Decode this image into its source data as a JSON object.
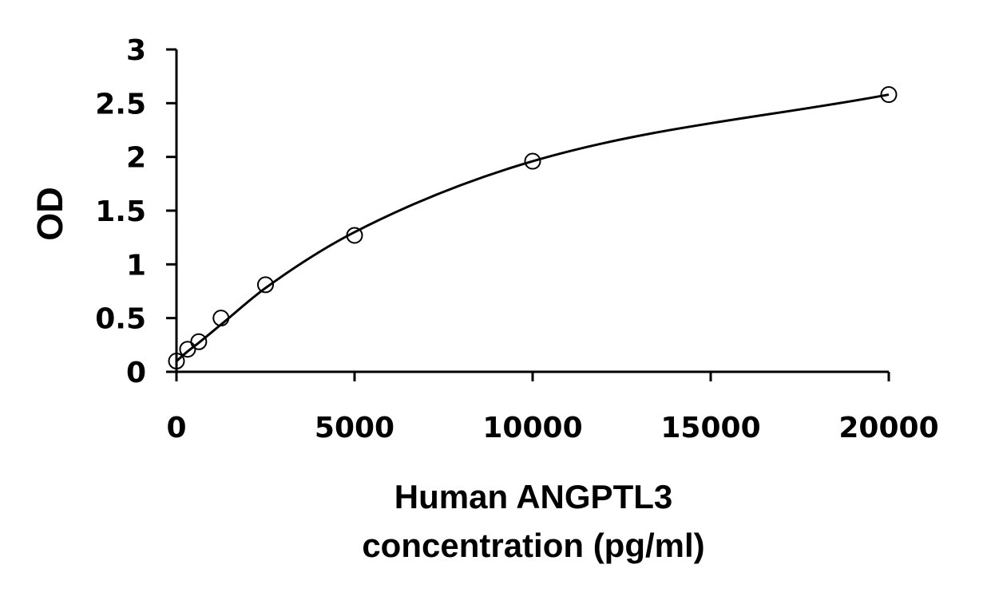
{
  "chart_data": {
    "type": "scatter",
    "title": "",
    "xlabel_lines": [
      "Human ANGPTL3",
      "concentration (pg/ml)"
    ],
    "ylabel": "OD",
    "xlim": [
      0,
      20000
    ],
    "ylim": [
      0,
      3
    ],
    "xticks": [
      0,
      5000,
      10000,
      15000,
      20000
    ],
    "yticks": [
      0,
      0.5,
      1,
      1.5,
      2,
      2.5,
      3
    ],
    "xtick_labels": [
      "0",
      "5000",
      "10000",
      "15000",
      "20000"
    ],
    "ytick_labels": [
      "0",
      "0.5",
      "1",
      "1.5",
      "2",
      "2.5",
      "3"
    ],
    "grid": false,
    "legend": "none",
    "series": [
      {
        "marker": "open-circle",
        "x": [
          0,
          312.5,
          625,
          1250,
          2500,
          5000,
          10000,
          20000
        ],
        "y": [
          0.1,
          0.21,
          0.28,
          0.5,
          0.81,
          1.27,
          1.96,
          2.58
        ]
      }
    ],
    "fit_curve": {
      "style": "smooth-line",
      "x": [
        0,
        312.5,
        625,
        1250,
        2500,
        5000,
        10000,
        20000
      ],
      "y": [
        0.1,
        0.19,
        0.27,
        0.44,
        0.78,
        1.3,
        1.96,
        2.58
      ]
    },
    "colors": {
      "axis": "#000000",
      "marker": "#000000",
      "curve": "#000000"
    }
  }
}
